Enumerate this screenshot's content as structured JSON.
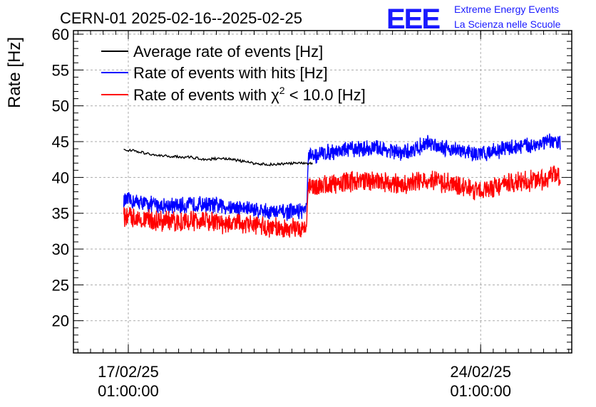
{
  "chart_data": {
    "type": "line",
    "title": "CERN-01 2025-02-16--2025-02-25",
    "ylabel": "Rate [Hz]",
    "xlabel": "",
    "x_unit": "days since 2025-02-16 00:00",
    "xlim": [
      -0.05,
      9.85
    ],
    "ylim": [
      15.5,
      60.5
    ],
    "yticks": [
      20,
      25,
      30,
      35,
      40,
      45,
      50,
      55,
      60
    ],
    "xticks": [
      {
        "value": 1.04,
        "line1": "17/02/25",
        "line2": "01:00:00"
      },
      {
        "value": 8.04,
        "line1": "24/02/25",
        "line2": "01:00:00"
      }
    ],
    "grid": true,
    "legend_position": "top-left",
    "legend": [
      {
        "label": "Average rate of events [Hz]",
        "color": "#000000"
      },
      {
        "label": "Rate of events with hits [Hz]",
        "color": "#0000ff"
      },
      {
        "label_prefix": "Rate of events with ",
        "label_symbol": "χ",
        "label_sup": "2",
        "label_suffix": " < 10.0 [Hz]",
        "color": "#ff0000"
      }
    ],
    "series": [
      {
        "name": "Average rate of events [Hz]",
        "color": "#000000",
        "x": [
          0.95,
          1.1,
          1.3,
          1.5,
          1.7,
          2.0,
          2.3,
          2.6,
          2.9,
          3.2,
          3.5,
          3.8,
          4.1,
          4.4,
          4.6,
          4.7
        ],
        "y": [
          43.8,
          43.8,
          43.5,
          43.2,
          43.0,
          42.9,
          42.8,
          42.5,
          42.7,
          42.4,
          42.0,
          41.8,
          41.9,
          42.0,
          41.9,
          42.0
        ]
      },
      {
        "name": "Rate of events with hits [Hz]",
        "color": "#0000ff",
        "noise_band": 1.3,
        "x": [
          0.95,
          1.2,
          1.5,
          2.0,
          2.5,
          3.0,
          3.5,
          4.0,
          4.3,
          4.58,
          4.62,
          5.0,
          5.5,
          6.0,
          6.5,
          7.0,
          7.5,
          8.0,
          8.5,
          9.0,
          9.3,
          9.5,
          9.62
        ],
        "y": [
          36.8,
          36.6,
          36.2,
          36.0,
          36.3,
          35.9,
          35.6,
          35.1,
          35.2,
          35.5,
          42.8,
          43.5,
          44.0,
          44.1,
          43.3,
          44.8,
          43.9,
          43.2,
          44.0,
          44.5,
          44.8,
          45.0,
          44.9
        ]
      },
      {
        "name": "Rate of events with χ2 < 10.0 [Hz]",
        "color": "#ff0000",
        "noise_band": 1.6,
        "x": [
          0.95,
          1.2,
          1.5,
          2.0,
          2.5,
          3.0,
          3.5,
          4.0,
          4.3,
          4.58,
          4.62,
          5.0,
          5.5,
          6.0,
          6.5,
          7.0,
          7.5,
          8.0,
          8.5,
          9.0,
          9.3,
          9.5,
          9.62
        ],
        "y": [
          34.6,
          34.4,
          34.0,
          33.8,
          34.0,
          33.5,
          33.4,
          32.9,
          32.8,
          33.3,
          38.6,
          39.0,
          39.5,
          39.6,
          38.8,
          39.8,
          38.9,
          38.2,
          39.0,
          39.5,
          39.8,
          40.2,
          40.0
        ]
      }
    ]
  },
  "logo": {
    "mark": "EEE",
    "line1": "Extreme Energy Events",
    "line2": "La Scienza nelle Scuole"
  }
}
